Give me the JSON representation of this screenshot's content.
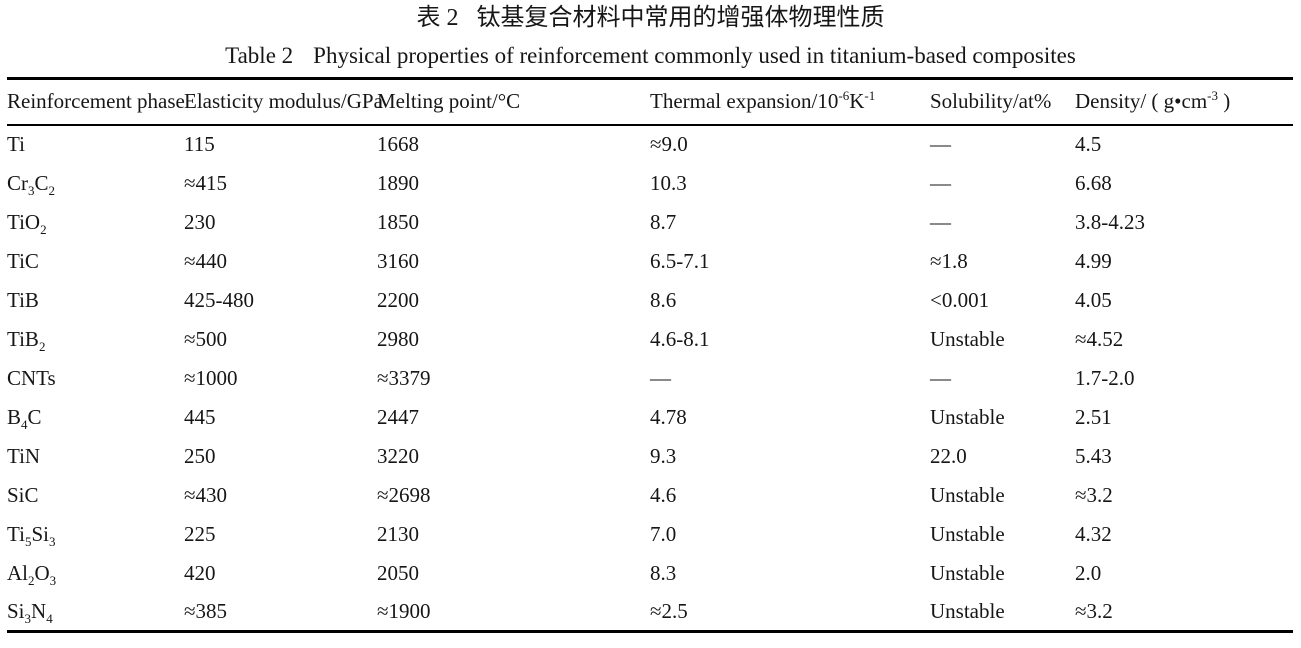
{
  "titles": {
    "zh_label": "表 2",
    "zh_text": "钛基复合材料中常用的增强体物理性质",
    "en_label": "Table 2",
    "en_text": "Physical properties of reinforcement commonly used in titanium-based composites"
  },
  "table": {
    "columns": [
      {
        "key": "phase",
        "label": "Reinforcement phase"
      },
      {
        "key": "elasticity_modulus",
        "label": "Elasticity modulus/GPa"
      },
      {
        "key": "melting_point",
        "label": "Melting point/°C"
      },
      {
        "key": "thermal_expansion",
        "label": "Thermal expansion/10^-6^K^-1^"
      },
      {
        "key": "solubility",
        "label": "Solubility/at%"
      },
      {
        "key": "density",
        "label": "Density/ ( g•cm^-3^ )"
      }
    ],
    "rows": [
      [
        "Ti",
        "115",
        "1668",
        "≈9.0",
        "—",
        "4.5"
      ],
      [
        "Cr~3~C~2~",
        "≈415",
        "1890",
        "10.3",
        "—",
        "6.68"
      ],
      [
        "TiO~2~",
        "230",
        "1850",
        "8.7",
        "—",
        "3.8-4.23"
      ],
      [
        "TiC",
        "≈440",
        "3160",
        "6.5-7.1",
        "≈1.8",
        "4.99"
      ],
      [
        "TiB",
        "425-480",
        "2200",
        "8.6",
        "<0.001",
        "4.05"
      ],
      [
        "TiB~2~",
        "≈500",
        "2980",
        "4.6-8.1",
        "Unstable",
        "≈4.52"
      ],
      [
        "CNTs",
        "≈1000",
        "≈3379",
        "—",
        "—",
        "1.7-2.0"
      ],
      [
        "B~4~C",
        "445",
        "2447",
        "4.78",
        "Unstable",
        "2.51"
      ],
      [
        "TiN",
        "250",
        "3220",
        "9.3",
        "22.0",
        "5.43"
      ],
      [
        "SiC",
        "≈430",
        "≈2698",
        "4.6",
        "Unstable",
        "≈3.2"
      ],
      [
        "Ti~5~Si~3~",
        "225",
        "2130",
        "7.0",
        "Unstable",
        "4.32"
      ],
      [
        "Al~2~O~3~",
        "420",
        "2050",
        "8.3",
        "Unstable",
        "2.0"
      ],
      [
        "Si~3~N~4~",
        "≈385",
        "≈1900",
        "≈2.5",
        "Unstable",
        "≈3.2"
      ]
    ]
  }
}
